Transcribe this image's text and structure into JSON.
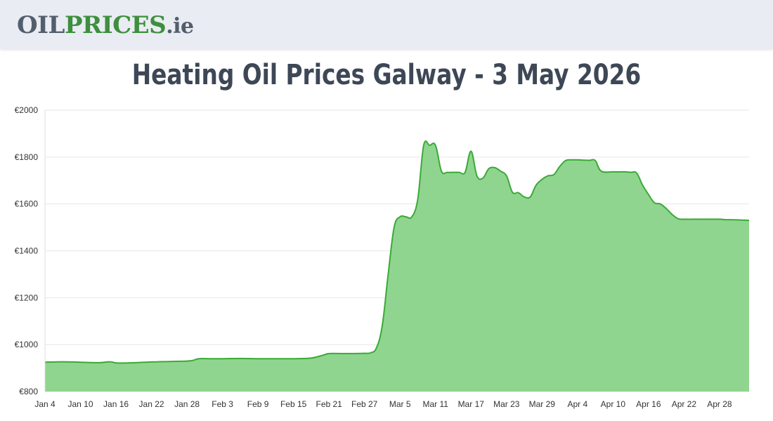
{
  "header": {
    "logo_part1": "OIL",
    "logo_part2": "PRICES",
    "logo_part3": ".ie"
  },
  "page_title": "Heating Oil Prices Galway - 3 May 2026",
  "colors": {
    "line": "#3aaa35",
    "area_fill": "#8fd58f",
    "grid": "#e6e6e6",
    "title": "#3d4756"
  },
  "chart_data": {
    "type": "area",
    "title": "",
    "xlabel": "",
    "ylabel": "",
    "ylim": [
      800,
      2000
    ],
    "yticks": [
      800,
      1000,
      1200,
      1400,
      1600,
      1800,
      2000
    ],
    "ytick_labels": [
      "€800",
      "€1000",
      "€1200",
      "€1400",
      "€1600",
      "€1800",
      "€2000"
    ],
    "xlim": [
      "Jan 4",
      "May 3"
    ],
    "xtick_labels": [
      "Jan 4",
      "Jan 10",
      "Jan 16",
      "Jan 22",
      "Jan 28",
      "Feb 3",
      "Feb 9",
      "Feb 15",
      "Feb 21",
      "Feb 27",
      "Mar 5",
      "Mar 11",
      "Mar 17",
      "Mar 23",
      "Mar 29",
      "Apr 4",
      "Apr 10",
      "Apr 16",
      "Apr 22",
      "Apr 28"
    ],
    "grid": true,
    "legend": "none",
    "series": [
      {
        "dates": [
          "Jan 4",
          "Jan 7",
          "Jan 10",
          "Jan 13",
          "Jan 15",
          "Jan 16",
          "Jan 18",
          "Jan 20",
          "Jan 22",
          "Jan 23",
          "Jan 25",
          "Jan 28",
          "Jan 29",
          "Jan 30",
          "Feb 1",
          "Feb 3",
          "Feb 6",
          "Feb 9",
          "Feb 12",
          "Feb 15",
          "Feb 18",
          "Feb 20",
          "Feb 21",
          "Feb 23",
          "Feb 25",
          "Feb 27",
          "Feb 28",
          "Mar 1",
          "Mar 2",
          "Mar 3",
          "Mar 4",
          "Mar 5",
          "Mar 6",
          "Mar 7",
          "Mar 8",
          "Mar 9",
          "Mar 10",
          "Mar 11",
          "Mar 12",
          "Mar 13",
          "Mar 14",
          "Mar 15",
          "Mar 16",
          "Mar 17",
          "Mar 18",
          "Mar 19",
          "Mar 20",
          "Mar 21",
          "Mar 22",
          "Mar 23",
          "Mar 24",
          "Mar 25",
          "Mar 26",
          "Mar 27",
          "Mar 28",
          "Mar 29",
          "Mar 30",
          "Mar 31",
          "Apr 1",
          "Apr 2",
          "Apr 3",
          "Apr 4",
          "Apr 5",
          "Apr 6",
          "Apr 7",
          "Apr 8",
          "Apr 10",
          "Apr 11",
          "Apr 12",
          "Apr 13",
          "Apr 14",
          "Apr 15",
          "Apr 16",
          "Apr 17",
          "Apr 18",
          "Apr 19",
          "Apr 20",
          "Apr 21",
          "Apr 22",
          "Apr 25",
          "Apr 28",
          "Apr 29",
          "May 1",
          "May 3"
        ],
        "values": [
          925,
          927,
          925,
          923,
          927,
          922,
          922,
          924,
          926,
          927,
          928,
          930,
          933,
          940,
          940,
          940,
          941,
          940,
          940,
          940,
          943,
          955,
          962,
          962,
          962,
          963,
          965,
          985,
          1080,
          1300,
          1500,
          1545,
          1545,
          1545,
          1620,
          1850,
          1850,
          1850,
          1740,
          1735,
          1735,
          1735,
          1735,
          1825,
          1720,
          1710,
          1750,
          1755,
          1740,
          1720,
          1650,
          1648,
          1630,
          1630,
          1680,
          1705,
          1720,
          1725,
          1760,
          1785,
          1788,
          1788,
          1787,
          1786,
          1785,
          1740,
          1737,
          1737,
          1737,
          1735,
          1732,
          1680,
          1640,
          1605,
          1600,
          1580,
          1555,
          1537,
          1535,
          1535,
          1535,
          1533,
          1532,
          1530
        ]
      }
    ]
  }
}
